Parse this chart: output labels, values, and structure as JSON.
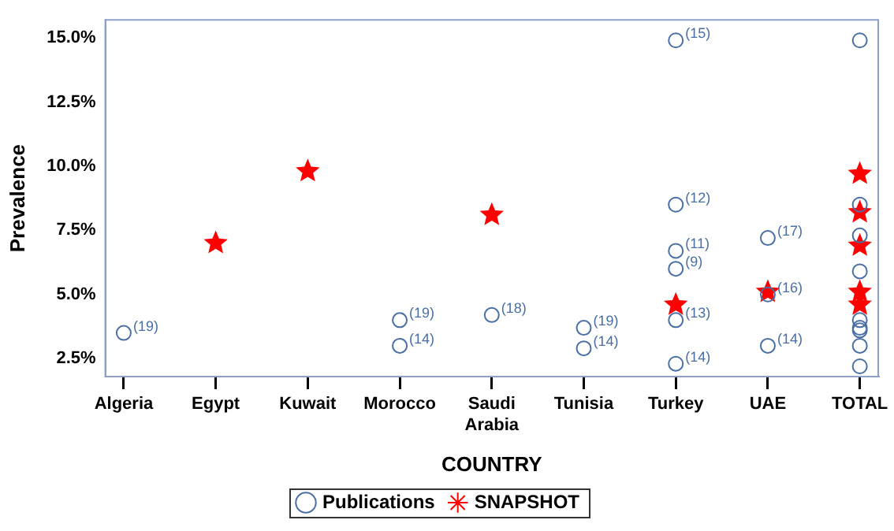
{
  "chart_data": {
    "type": "scatter",
    "xlabel": "COUNTRY",
    "ylabel": "Prevalence",
    "categories": [
      "Algeria",
      "Egypt",
      "Kuwait",
      "Morocco",
      "Saudi Arabia",
      "Tunisia",
      "Turkey",
      "UAE",
      "TOTAL"
    ],
    "series": [
      {
        "name": "Publications",
        "color": "#4a6fa5",
        "marker": "circle",
        "x": [
          "Algeria",
          "Morocco",
          "Morocco",
          "Saudi Arabia",
          "Tunisia",
          "Tunisia",
          "Turkey",
          "Turkey",
          "Turkey",
          "Turkey",
          "Turkey",
          "Turkey",
          "UAE",
          "UAE",
          "UAE",
          "TOTAL",
          "TOTAL",
          "TOTAL",
          "TOTAL",
          "TOTAL",
          "TOTAL",
          "TOTAL",
          "TOTAL",
          "TOTAL"
        ],
        "values": [
          3.5,
          4.0,
          3.0,
          4.2,
          3.7,
          2.9,
          14.9,
          8.5,
          6.7,
          6.0,
          4.0,
          2.3,
          7.2,
          5.0,
          3.0,
          14.9,
          8.5,
          7.3,
          5.9,
          4.0,
          3.7,
          3.6,
          3.0,
          2.2
        ]
      },
      {
        "name": "SNAPSHOT",
        "color": "#ff0000",
        "marker": "star",
        "x": [
          "Egypt",
          "Kuwait",
          "Saudi Arabia",
          "Turkey",
          "UAE",
          "TOTAL",
          "TOTAL",
          "TOTAL",
          "TOTAL",
          "TOTAL"
        ],
        "values": [
          7.0,
          9.8,
          8.1,
          4.6,
          5.1,
          9.7,
          8.2,
          6.9,
          5.1,
          4.6
        ]
      }
    ],
    "ylim": [
      1.8,
      15.7
    ],
    "yticks": [
      {
        "value": 2.5,
        "label": "2.5%"
      },
      {
        "value": 5,
        "label": "5.0%"
      },
      {
        "value": 7.5,
        "label": "7.5%"
      },
      {
        "value": 10,
        "label": "10.0%"
      },
      {
        "value": 12.5,
        "label": "12.5%"
      },
      {
        "value": 15,
        "label": "15.0%"
      }
    ],
    "grid": false,
    "legend": "bottom",
    "annotations": [
      {
        "text": "(19)",
        "x": "Algeria",
        "y": 3.5
      },
      {
        "text": "(19)",
        "x": "Morocco",
        "y": 4.0
      },
      {
        "text": "(14)",
        "x": "Morocco",
        "y": 3.0
      },
      {
        "text": "(18)",
        "x": "Saudi Arabia",
        "y": 4.2
      },
      {
        "text": "(19)",
        "x": "Tunisia",
        "y": 3.7
      },
      {
        "text": "(14)",
        "x": "Tunisia",
        "y": 2.9
      },
      {
        "text": "(15)",
        "x": "Turkey",
        "y": 14.9
      },
      {
        "text": "(12)",
        "x": "Turkey",
        "y": 8.5
      },
      {
        "text": "(11)",
        "x": "Turkey",
        "y": 6.7
      },
      {
        "text": "(9)",
        "x": "Turkey",
        "y": 6.0
      },
      {
        "text": "(13)",
        "x": "Turkey",
        "y": 4.0
      },
      {
        "text": "(14)",
        "x": "Turkey",
        "y": 2.3
      },
      {
        "text": "(17)",
        "x": "UAE",
        "y": 7.2
      },
      {
        "text": "(16)",
        "x": "UAE",
        "y": 5.0
      },
      {
        "text": "(14)",
        "x": "UAE",
        "y": 3.0
      }
    ]
  }
}
